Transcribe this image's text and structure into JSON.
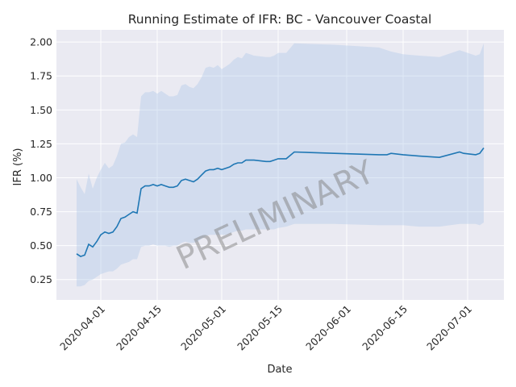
{
  "chart_data": {
    "type": "line",
    "title": "Running Estimate of IFR: BC - Vancouver Coastal",
    "xlabel": "Date",
    "ylabel": "IFR (%)",
    "watermark": "PRELIMINARY",
    "x_start": "2020-03-26",
    "x_ticks": [
      "2020-04-01",
      "2020-04-15",
      "2020-05-01",
      "2020-05-15",
      "2020-06-01",
      "2020-06-15",
      "2020-07-01"
    ],
    "y_ticks": [
      "0.25",
      "0.50",
      "0.75",
      "1.00",
      "1.25",
      "1.50",
      "1.75",
      "2.00"
    ],
    "xlim": [
      "2020-03-21",
      "2020-07-10"
    ],
    "ylim": [
      0.1,
      2.09
    ],
    "grid": true,
    "colors": {
      "line": "#1f77b4",
      "band": "#aec7e8",
      "background": "#eaeaf2"
    },
    "series": [
      {
        "x": [
          "2020-03-26",
          "2020-03-27",
          "2020-03-28",
          "2020-03-29",
          "2020-03-30",
          "2020-03-31",
          "2020-04-01",
          "2020-04-02",
          "2020-04-03",
          "2020-04-04",
          "2020-04-05",
          "2020-04-06",
          "2020-04-07",
          "2020-04-08",
          "2020-04-09",
          "2020-04-10",
          "2020-04-11",
          "2020-04-12",
          "2020-04-13",
          "2020-04-14",
          "2020-04-15",
          "2020-04-16",
          "2020-04-17",
          "2020-04-18",
          "2020-04-19",
          "2020-04-20",
          "2020-04-21",
          "2020-04-22",
          "2020-04-23",
          "2020-04-24",
          "2020-04-25",
          "2020-04-26",
          "2020-04-27",
          "2020-04-28",
          "2020-04-29",
          "2020-04-30",
          "2020-05-01",
          "2020-05-02",
          "2020-05-03",
          "2020-05-04",
          "2020-05-05",
          "2020-05-06",
          "2020-05-07",
          "2020-05-08",
          "2020-05-09",
          "2020-05-12",
          "2020-05-13",
          "2020-05-14",
          "2020-05-15",
          "2020-05-17",
          "2020-05-19",
          "2020-05-29",
          "2020-06-09",
          "2020-06-10",
          "2020-06-11",
          "2020-06-12",
          "2020-06-15",
          "2020-06-19",
          "2020-06-24",
          "2020-06-29",
          "2020-06-30",
          "2020-07-03",
          "2020-07-04",
          "2020-07-05"
        ],
        "values": [
          0.44,
          0.42,
          0.43,
          0.51,
          0.49,
          0.53,
          0.58,
          0.6,
          0.59,
          0.6,
          0.64,
          0.7,
          0.71,
          0.73,
          0.75,
          0.74,
          0.92,
          0.94,
          0.94,
          0.95,
          0.94,
          0.95,
          0.94,
          0.93,
          0.93,
          0.94,
          0.98,
          0.99,
          0.98,
          0.97,
          0.99,
          1.02,
          1.05,
          1.06,
          1.06,
          1.07,
          1.06,
          1.07,
          1.08,
          1.1,
          1.11,
          1.11,
          1.13,
          1.13,
          1.13,
          1.12,
          1.12,
          1.13,
          1.14,
          1.14,
          1.19,
          1.18,
          1.17,
          1.17,
          1.17,
          1.18,
          1.17,
          1.16,
          1.15,
          1.19,
          1.18,
          1.17,
          1.18,
          1.22
        ],
        "lower": [
          0.2,
          0.2,
          0.21,
          0.24,
          0.25,
          0.27,
          0.29,
          0.3,
          0.31,
          0.31,
          0.33,
          0.36,
          0.37,
          0.38,
          0.4,
          0.4,
          0.49,
          0.5,
          0.5,
          0.51,
          0.5,
          0.5,
          0.5,
          0.49,
          0.5,
          0.5,
          0.52,
          0.53,
          0.52,
          0.52,
          0.53,
          0.55,
          0.57,
          0.58,
          0.58,
          0.58,
          0.58,
          0.58,
          0.59,
          0.6,
          0.61,
          0.61,
          0.62,
          0.62,
          0.62,
          0.62,
          0.62,
          0.62,
          0.63,
          0.64,
          0.66,
          0.66,
          0.65,
          0.65,
          0.65,
          0.65,
          0.65,
          0.64,
          0.64,
          0.66,
          0.66,
          0.66,
          0.65,
          0.67
        ],
        "upper": [
          0.99,
          0.93,
          0.88,
          1.03,
          0.92,
          1.0,
          1.06,
          1.11,
          1.07,
          1.09,
          1.16,
          1.25,
          1.26,
          1.3,
          1.32,
          1.3,
          1.6,
          1.63,
          1.63,
          1.64,
          1.62,
          1.64,
          1.62,
          1.6,
          1.6,
          1.61,
          1.68,
          1.69,
          1.67,
          1.66,
          1.69,
          1.74,
          1.81,
          1.82,
          1.81,
          1.83,
          1.8,
          1.82,
          1.84,
          1.87,
          1.89,
          1.88,
          1.92,
          1.91,
          1.9,
          1.89,
          1.89,
          1.9,
          1.92,
          1.92,
          1.99,
          1.98,
          1.96,
          1.95,
          1.94,
          1.93,
          1.91,
          1.9,
          1.89,
          1.94,
          1.93,
          1.9,
          1.91,
          1.99
        ]
      }
    ]
  }
}
